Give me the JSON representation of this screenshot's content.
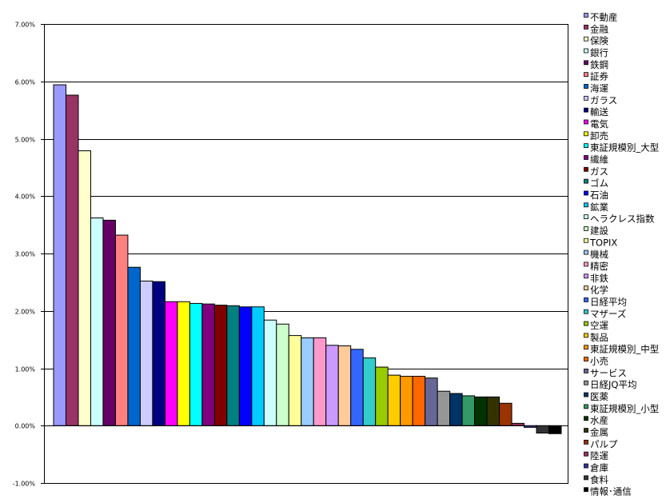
{
  "chart_data": {
    "type": "bar",
    "title": "",
    "xlabel": "",
    "ylabel": "",
    "ylim": [
      -1.0,
      7.0
    ],
    "yticks": [
      "7.00%",
      "6.00%",
      "5.00%",
      "4.00%",
      "3.00%",
      "2.00%",
      "1.00%",
      "0.00%",
      "-1.00%"
    ],
    "ytick_values": [
      7,
      6,
      5,
      4,
      3,
      2,
      1,
      0,
      -1
    ],
    "grid": "horizontal major",
    "legend": "right",
    "unit": "%",
    "categories": [
      "不動産",
      "金融",
      "保険",
      "銀行",
      "鉄鋼",
      "証券",
      "海運",
      "ガラス",
      "輸送",
      "電気",
      "卸売",
      "東証規模別_大型",
      "繊維",
      "ガス",
      "ゴム",
      "石油",
      "鉱業",
      "ヘラクレス指数",
      "建設",
      "TOPIX",
      "機械",
      "精密",
      "非鉄",
      "化学",
      "日経平均",
      "マザーズ",
      "空運",
      "製品",
      "東証規模別_中型",
      "小売",
      "サービス",
      "日経JQ平均",
      "医薬",
      "東証規模別_小型",
      "水産",
      "金属",
      "パルプ",
      "陸運",
      "倉庫",
      "食料",
      "情報･通信"
    ],
    "values": [
      5.94,
      5.76,
      4.79,
      3.62,
      3.58,
      3.32,
      2.76,
      2.52,
      2.51,
      2.16,
      2.16,
      2.13,
      2.12,
      2.1,
      2.09,
      2.07,
      2.07,
      1.84,
      1.77,
      1.57,
      1.53,
      1.53,
      1.4,
      1.39,
      1.33,
      1.18,
      1.02,
      0.88,
      0.86,
      0.86,
      0.83,
      0.6,
      0.56,
      0.52,
      0.5,
      0.5,
      0.39,
      0.04,
      -0.03,
      -0.13,
      -0.14
    ],
    "colors": [
      "#9999FF",
      "#993366",
      "#FFFFCC",
      "#CCFFFF",
      "#660066",
      "#FF8080",
      "#0066CC",
      "#CCCCFF",
      "#000080",
      "#FF00FF",
      "#FFFF00",
      "#00FFFF",
      "#800080",
      "#800000",
      "#008080",
      "#0000FF",
      "#00CCFF",
      "#CCFFFF",
      "#CCFFCC",
      "#FFFF99",
      "#99CCFF",
      "#FF99CC",
      "#CC99FF",
      "#FFCC99",
      "#3366FF",
      "#33CCCC",
      "#99CC00",
      "#FFCC00",
      "#FF9900",
      "#FF6600",
      "#666699",
      "#969696",
      "#003366",
      "#339966",
      "#003300",
      "#333300",
      "#993300",
      "#993366",
      "#333399",
      "#333333",
      "#000000"
    ]
  }
}
